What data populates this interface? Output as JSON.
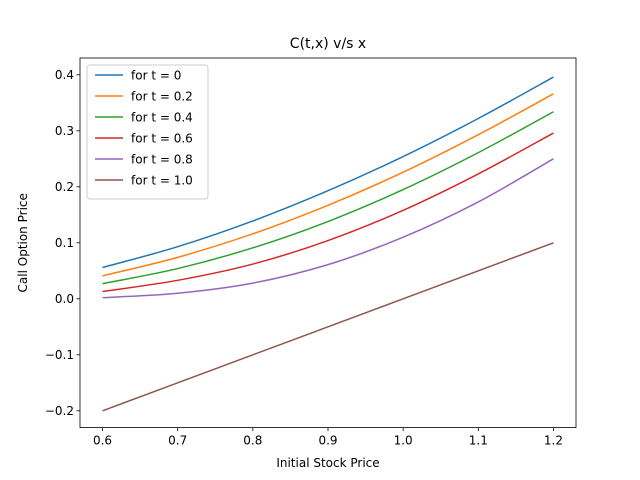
{
  "chart_data": {
    "type": "line",
    "title": "C(t,x) v/s x",
    "xlabel": "Initial Stock Price",
    "ylabel": "Call Option Price",
    "xlim": [
      0.57,
      1.23
    ],
    "ylim": [
      -0.23,
      0.43
    ],
    "x_ticks": [
      0.6,
      0.7,
      0.8,
      0.9,
      1.0,
      1.1,
      1.2
    ],
    "x_tick_labels": [
      "0.6",
      "0.7",
      "0.8",
      "0.9",
      "1.0",
      "1.1",
      "1.2"
    ],
    "y_ticks": [
      -0.2,
      -0.1,
      0.0,
      0.1,
      0.2,
      0.3,
      0.4
    ],
    "y_tick_labels": [
      "−0.2",
      "−0.1",
      "0.0",
      "0.1",
      "0.2",
      "0.3",
      "0.4"
    ],
    "grid": false,
    "legend_position": "top-left",
    "x": [
      0.6,
      0.7,
      0.8,
      0.9,
      1.0,
      1.1,
      1.2
    ],
    "series": [
      {
        "name": "for t = 0",
        "color": "#1f77b4",
        "values": [
          0.056,
          0.093,
          0.139,
          0.193,
          0.254,
          0.322,
          0.396
        ]
      },
      {
        "name": "for t = 0.2",
        "color": "#ff7f0e",
        "values": [
          0.041,
          0.074,
          0.116,
          0.167,
          0.226,
          0.293,
          0.366
        ]
      },
      {
        "name": "for t = 0.4",
        "color": "#2ca02c",
        "values": [
          0.027,
          0.054,
          0.091,
          0.138,
          0.195,
          0.261,
          0.334
        ]
      },
      {
        "name": "for t = 0.6",
        "color": "#d62728",
        "values": [
          0.013,
          0.033,
          0.062,
          0.104,
          0.158,
          0.223,
          0.296
        ]
      },
      {
        "name": "for t = 0.8",
        "color": "#9467bd",
        "values": [
          0.002,
          0.01,
          0.028,
          0.061,
          0.11,
          0.173,
          0.25
        ]
      },
      {
        "name": "for t = 1.0",
        "color": "#8c564b",
        "values": [
          -0.2,
          -0.15,
          -0.1,
          -0.05,
          0.0,
          0.05,
          0.1
        ]
      }
    ]
  }
}
